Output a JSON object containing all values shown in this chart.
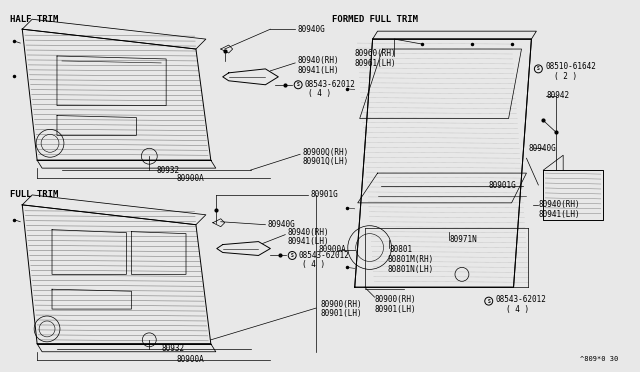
{
  "bg_color": "#e8e8e8",
  "figsize": [
    6.4,
    3.72
  ],
  "dpi": 100,
  "footer": "^809*0 30",
  "half_trim_label": "HALF TRIM",
  "full_trim_label": "FULL TRIM",
  "formed_full_trim_label": "FORMED FULL TRIM"
}
